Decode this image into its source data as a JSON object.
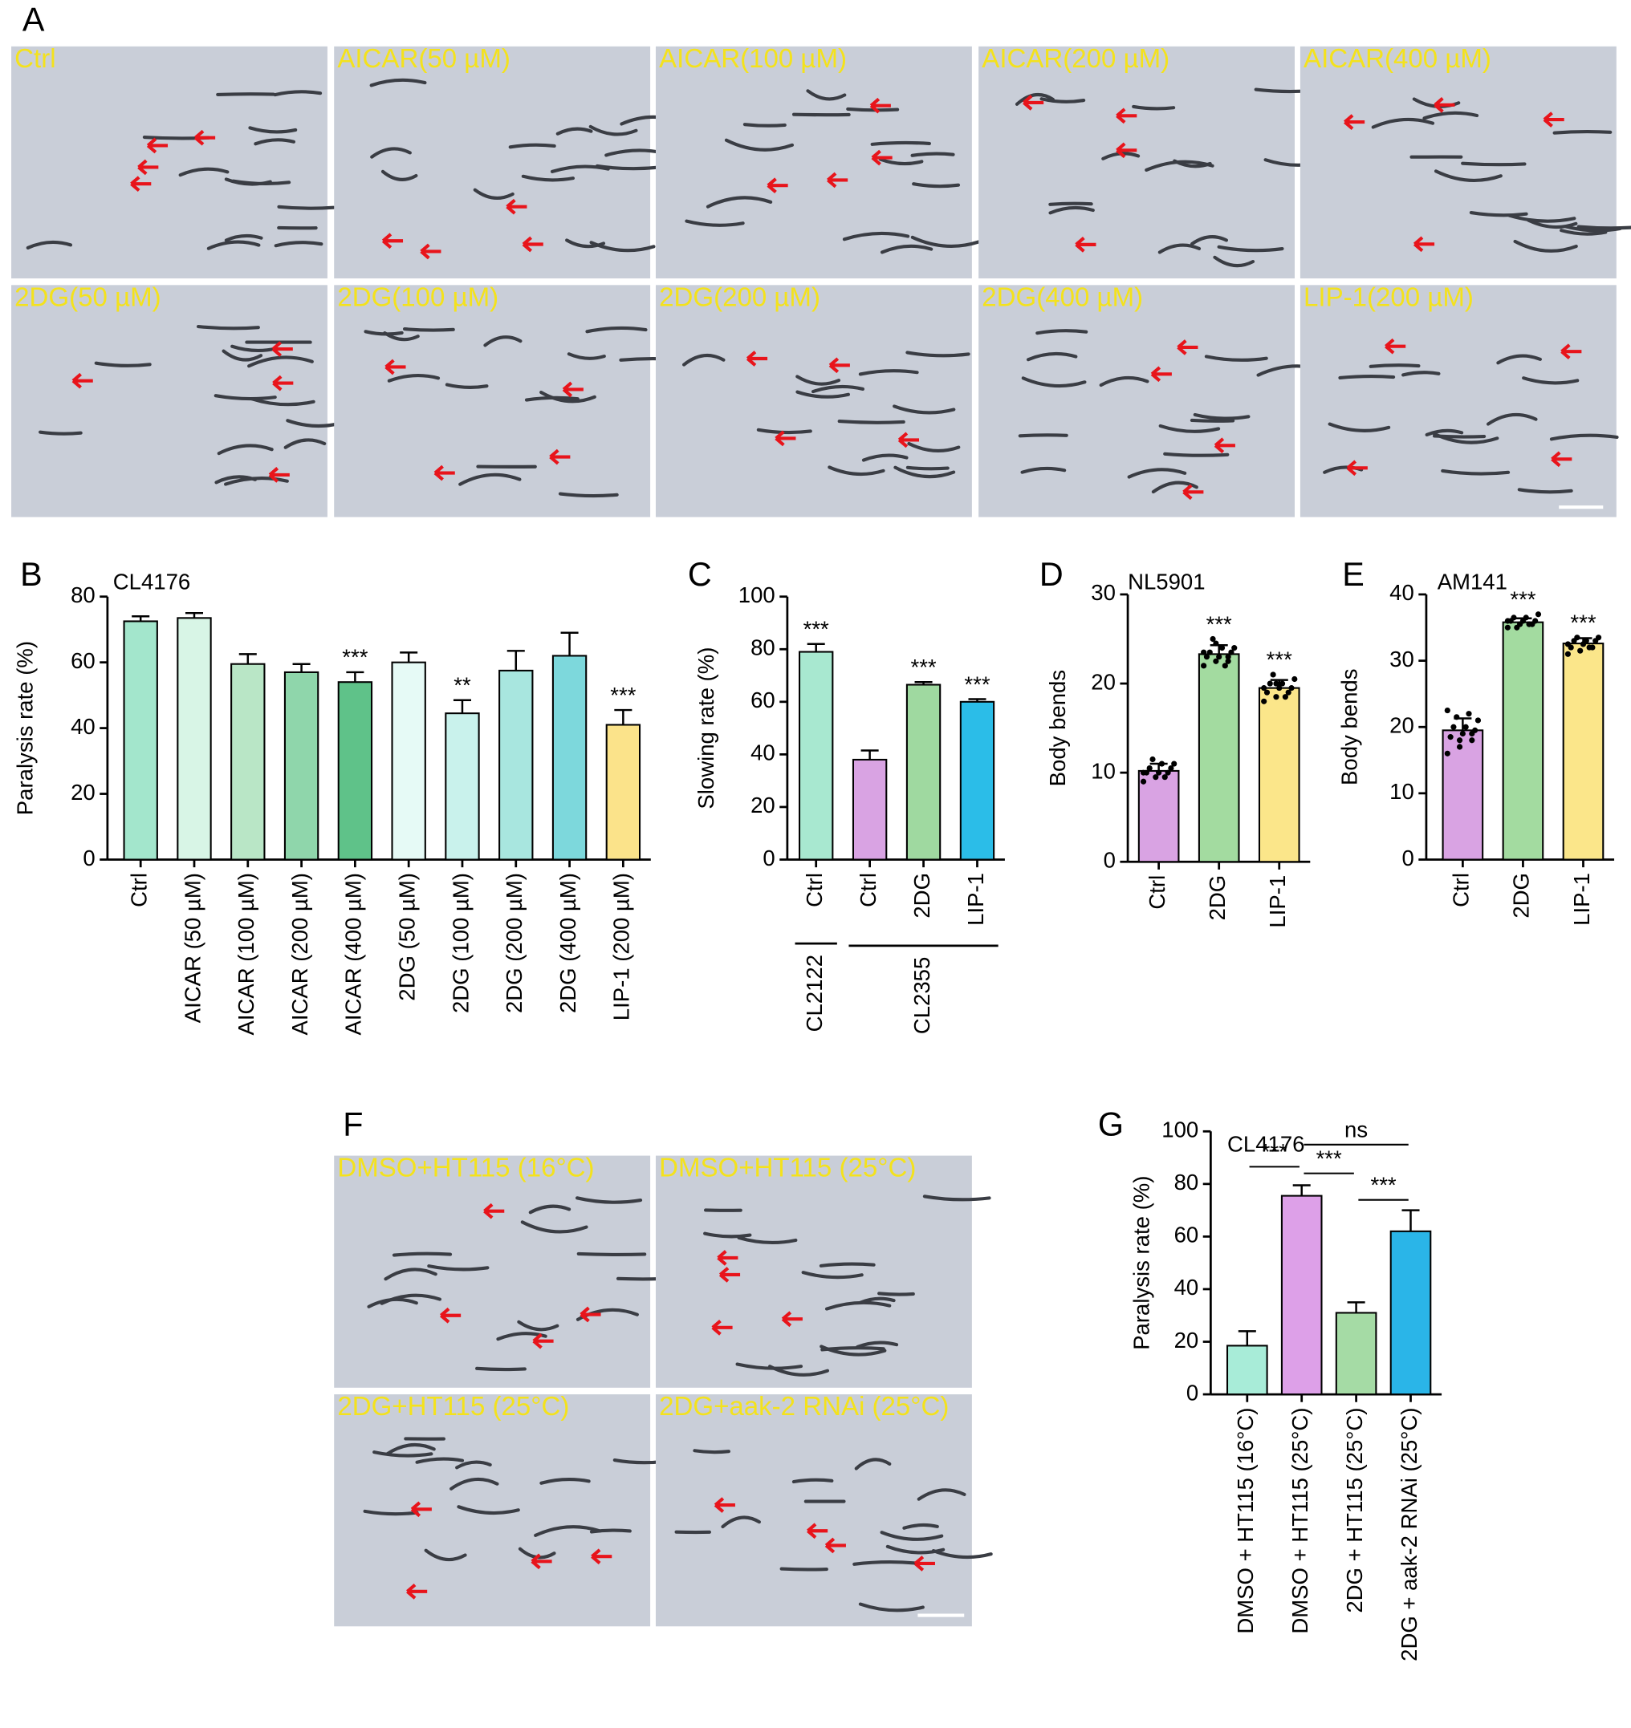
{
  "panel_labels": [
    "A",
    "B",
    "C",
    "D",
    "E",
    "F",
    "G"
  ],
  "images_A": {
    "labels": [
      "Ctrl",
      "AICAR(50 µM)",
      "AICAR(100 µM)",
      "AICAR(200 µM)",
      "AICAR(400 µM)",
      "2DG(50 µM)",
      "2DG(100 µM)",
      "2DG(200 µM)",
      "2DG(400 µM)",
      "LIP-1(200 µM)"
    ]
  },
  "images_F": {
    "labels": [
      "DMSO+HT115 (16°C)",
      "DMSO+HT115 (25°C)",
      "2DG+HT115 (25°C)",
      "2DG+aak-2 RNAi (25°C)"
    ]
  },
  "chart_data": [
    {
      "type": "bar",
      "title": "CL4176",
      "y_label": "Paralysis rate (%)",
      "categories": [
        "Ctrl",
        "AICAR (50 µM)",
        "AICAR (100 µM)",
        "AICAR (200 µM)",
        "AICAR (400 µM)",
        "2DG (50 µM)",
        "2DG (100 µM)",
        "2DG (200 µM)",
        "2DG (400 µM)",
        "LIP-1 (200 µM)"
      ],
      "values": [
        72.5,
        73.5,
        59.5,
        57,
        54,
        60,
        44.5,
        57.5,
        62,
        41
      ],
      "errors": [
        1.5,
        1.5,
        3,
        2.5,
        3,
        3,
        4,
        6,
        7,
        4.5
      ],
      "colors": [
        "#a3e6cc",
        "#d8f5e6",
        "#b9e6c6",
        "#8fd6ab",
        "#5fc289",
        "#e6faf6",
        "#c9f2ec",
        "#a8e6df",
        "#7dd8dc",
        "#fbe38a"
      ],
      "significance": [
        null,
        null,
        null,
        null,
        "***",
        null,
        "**",
        null,
        null,
        "***"
      ],
      "ylim": [
        0,
        80
      ],
      "yticks": [
        0,
        20,
        40,
        60,
        80
      ]
    },
    {
      "type": "bar",
      "y_label": "Slowing rate (%)",
      "categories": [
        "Ctrl",
        "Ctrl",
        "2DG",
        "LIP-1"
      ],
      "values": [
        79,
        38,
        66.5,
        60
      ],
      "errors": [
        3,
        3.5,
        1,
        1
      ],
      "colors": [
        "#a8e8d0",
        "#d9a3e3",
        "#9fd9a0",
        "#2bbde8"
      ],
      "significance": [
        "***",
        null,
        "***",
        "***"
      ],
      "groups": [
        {
          "name": "CL2122",
          "size": 1
        },
        {
          "name": "CL2355",
          "size": 3
        }
      ],
      "ylim": [
        0,
        100
      ],
      "yticks": [
        0,
        20,
        40,
        60,
        80,
        100
      ]
    },
    {
      "type": "bar",
      "title": "NL5901",
      "y_label": "Body bends",
      "categories": [
        "Ctrl",
        "2DG",
        "LIP-1"
      ],
      "values": [
        10.2,
        23.3,
        19.5
      ],
      "errors": [
        0.8,
        1,
        0.9
      ],
      "colors": [
        "#d9a3e3",
        "#a3dba0",
        "#fbe68a"
      ],
      "significance": [
        null,
        "***",
        "***"
      ],
      "points": [
        [
          9,
          9.5,
          10,
          10,
          10,
          10.5,
          10.5,
          11,
          11,
          11.5,
          9.5,
          10
        ],
        [
          22,
          22.5,
          23,
          23,
          23,
          23.5,
          23.5,
          24,
          24,
          25,
          22,
          23.5,
          24.5,
          22.5
        ],
        [
          18,
          18.5,
          19,
          19,
          19.5,
          19.5,
          20,
          20,
          20.5,
          21,
          18.5,
          19.5,
          20
        ]
      ],
      "ylim": [
        0,
        30
      ],
      "yticks": [
        0,
        10,
        20,
        30
      ]
    },
    {
      "type": "bar",
      "title": "AM141",
      "y_label": "Body bends",
      "categories": [
        "Ctrl",
        "2DG",
        "LIP-1"
      ],
      "values": [
        19.5,
        35.8,
        32.6
      ],
      "errors": [
        1.8,
        0.6,
        0.8
      ],
      "colors": [
        "#d9a3e3",
        "#a3dba0",
        "#fbe68a"
      ],
      "significance": [
        null,
        "***",
        "***"
      ],
      "points": [
        [
          16,
          17,
          18,
          18.5,
          19,
          19.5,
          20,
          20,
          21,
          21.5,
          22,
          22.5,
          18,
          19
        ],
        [
          35,
          35.5,
          35.5,
          36,
          36,
          36,
          36.5,
          36.5,
          37,
          35,
          35.5,
          36
        ],
        [
          31,
          31.5,
          32,
          32,
          32.5,
          33,
          33,
          33,
          33.5,
          33.5,
          32,
          32.5
        ]
      ],
      "ylim": [
        0,
        40
      ],
      "yticks": [
        0,
        10,
        20,
        30,
        40
      ]
    },
    {
      "type": "bar",
      "title": "CL4176",
      "y_label": "Paralysis rate (%)",
      "categories": [
        "DMSO + HT115 (16°C)",
        "DMSO + HT115 (25°C)",
        "2DG + HT115 (25°C)",
        "2DG + aak-2 RNAi (25°C)"
      ],
      "values": [
        18.5,
        75.5,
        31,
        62
      ],
      "errors": [
        5.5,
        4,
        4,
        8
      ],
      "colors": [
        "#a8ecd8",
        "#dda0e8",
        "#a5dba5",
        "#2ab5e8"
      ],
      "comparisons": [
        {
          "pair": [
            0,
            1
          ],
          "label": "***"
        },
        {
          "pair": [
            1,
            3
          ],
          "label": "ns"
        },
        {
          "pair": [
            1,
            2
          ],
          "label": "***"
        },
        {
          "pair": [
            2,
            3
          ],
          "label": "***"
        }
      ],
      "ylim": [
        0,
        100
      ],
      "yticks": [
        0,
        20,
        40,
        60,
        80,
        100
      ]
    }
  ]
}
